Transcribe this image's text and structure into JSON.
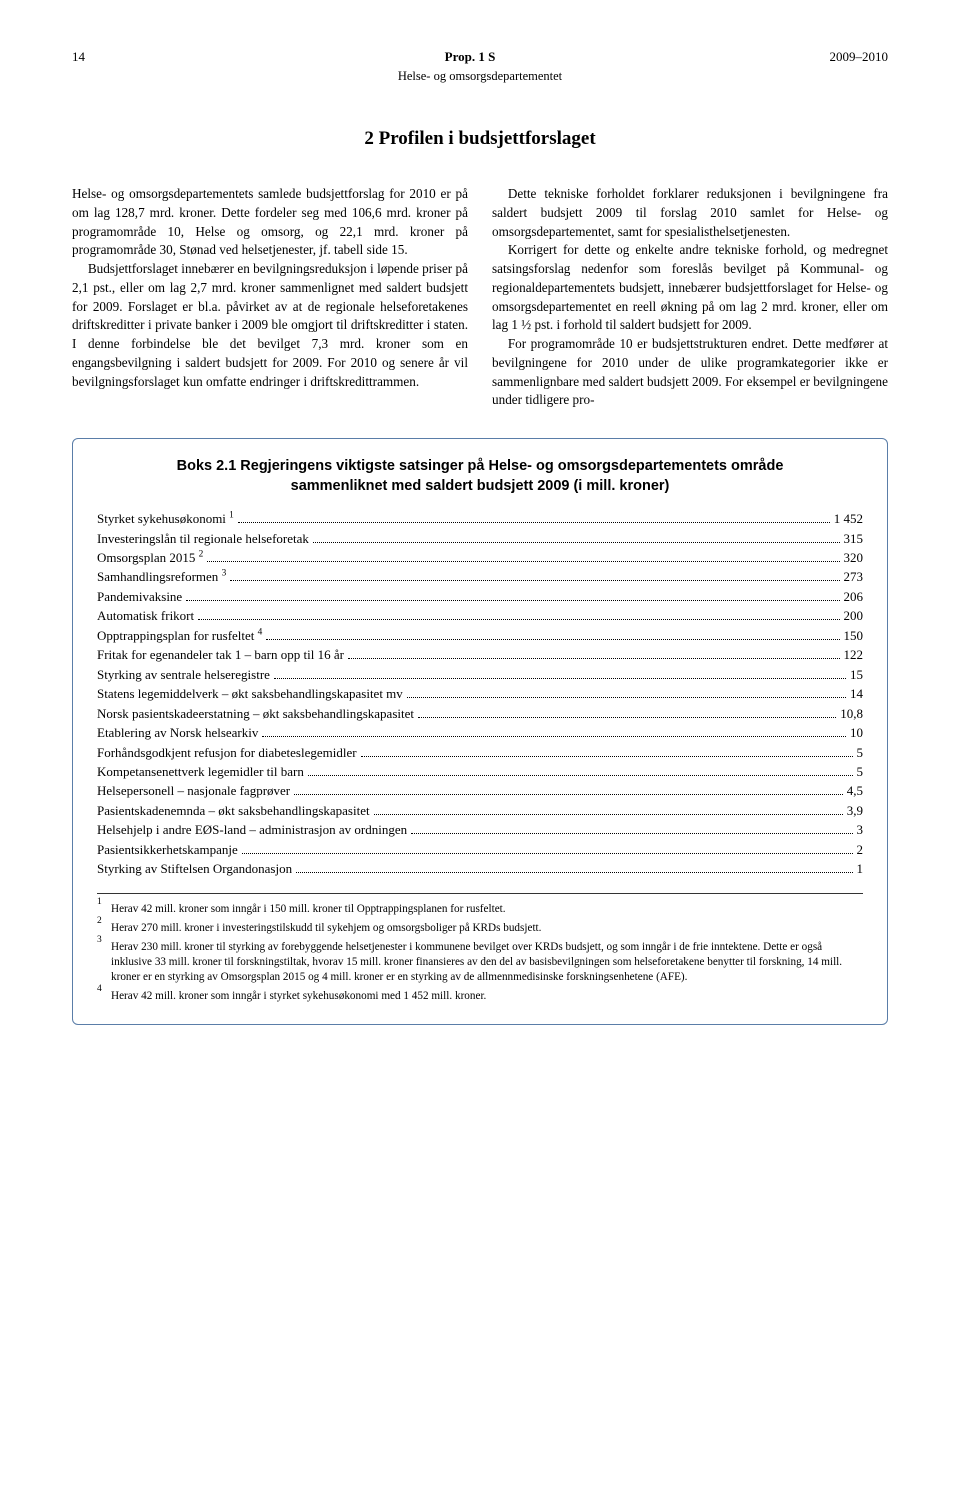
{
  "header": {
    "page": "14",
    "title": "Prop. 1 S",
    "year": "2009–2010",
    "subtitle": "Helse- og omsorgsdepartementet"
  },
  "section_title": "2   Profilen i budsjettforslaget",
  "paragraphs": [
    "Helse- og omsorgsdepartementets samlede budsjettforslag for 2010 er på om lag 128,7 mrd. kroner. Dette fordeler seg med 106,6 mrd. kroner på programområde 10, Helse og omsorg, og 22,1 mrd. kroner på programområde 30, Stønad ved helsetjenester, jf. tabell side 15.",
    "Budsjettforslaget innebærer en bevilgningsreduksjon i løpende priser på 2,1 pst., eller om lag 2,7 mrd. kroner sammenlignet med saldert budsjett for 2009. Forslaget er bl.a. påvirket av at de regionale helseforetakenes driftskreditter i private banker i 2009 ble omgjort til driftskreditter i staten. I denne forbindelse ble det bevilget 7,3 mrd. kroner som en engangsbevilgning i saldert budsjett for 2009. For 2010 og senere år vil bevilgningsforslaget kun omfatte endringer i driftskredittrammen.",
    "Dette tekniske forholdet forklarer reduksjonen i bevilgningene fra saldert budsjett 2009 til forslag 2010 samlet for Helse- og omsorgsdepartementet, samt for spesialisthelsetjenesten.",
    "Korrigert for dette og enkelte andre tekniske forhold, og medregnet satsingsforslag nedenfor som foreslås bevilget på Kommunal- og regionaldepartementets budsjett, innebærer budsjettforslaget for Helse- og omsorgsdepartementet en reell økning på om lag 2 mrd. kroner, eller om lag 1 ½ pst. i forhold til saldert budsjett for 2009.",
    "For programområde 10 er budsjettstrukturen endret. Dette medfører at bevilgningene for 2010 under de ulike programkategorier ikke er sammenlignbare med saldert budsjett 2009. For eksempel er bevilgningene under tidligere pro-"
  ],
  "box": {
    "title_line1": "Boks 2.1 Regjeringens viktigste satsinger på Helse- og omsorgsdepartementets område",
    "title_line2": "sammenliknet med saldert budsjett 2009 (i mill. kroner)",
    "rows": [
      {
        "label": "Styrket sykehusøkonomi ",
        "sup": "1",
        "value": "1 452"
      },
      {
        "label": "Investeringslån til regionale helseforetak",
        "sup": "",
        "value": "315"
      },
      {
        "label": "Omsorgsplan 2015 ",
        "sup": "2",
        "value": "320"
      },
      {
        "label": "Samhandlingsreformen ",
        "sup": "3",
        "value": "273"
      },
      {
        "label": "Pandemivaksine",
        "sup": "",
        "value": "206"
      },
      {
        "label": "Automatisk frikort",
        "sup": "",
        "value": "200"
      },
      {
        "label": "Opptrappingsplan for rusfeltet ",
        "sup": "4",
        "value": "150"
      },
      {
        "label": "Fritak for egenandeler tak 1 – barn opp til 16 år ",
        "sup": "",
        "value": " 122"
      },
      {
        "label": "Styrking av sentrale helseregistre ",
        "sup": "",
        "value": "15"
      },
      {
        "label": "Statens legemiddelverk – økt saksbehandlingskapasitet mv ",
        "sup": "",
        "value": " 14"
      },
      {
        "label": "Norsk pasientskadeerstatning – økt saksbehandlingskapasitet",
        "sup": "",
        "value": "10,8"
      },
      {
        "label": "Etablering av Norsk helsearkiv",
        "sup": "",
        "value": "10"
      },
      {
        "label": "Forhåndsgodkjent refusjon for diabeteslegemidler",
        "sup": "",
        "value": "5"
      },
      {
        "label": "Kompetansenettverk legemidler til barn",
        "sup": "",
        "value": "5"
      },
      {
        "label": "Helsepersonell – nasjonale fagprøver",
        "sup": "",
        "value": "4,5"
      },
      {
        "label": "Pasientskadenemnda – økt saksbehandlingskapasitet",
        "sup": "",
        "value": " 3,9"
      },
      {
        "label": "Helsehjelp i andre EØS-land – administrasjon av ordningen",
        "sup": "",
        "value": "3"
      },
      {
        "label": "Pasientsikkerhetskampanje",
        "sup": "",
        "value": "2"
      },
      {
        "label": "Styrking av Stiftelsen Organdonasjon",
        "sup": "",
        "value": "1"
      }
    ],
    "footnotes": [
      {
        "n": "1",
        "text": "Herav 42 mill. kroner som inngår i 150 mill. kroner til Opptrappingsplanen for rusfeltet."
      },
      {
        "n": "2",
        "text": "Herav 270 mill. kroner i investeringstilskudd til sykehjem og omsorgsboliger på KRDs budsjett."
      },
      {
        "n": "3",
        "text": "Herav 230 mill. kroner til styrking av forebyggende helsetjenester i kommunene bevilget over KRDs budsjett, og som inngår i de frie inntektene. Dette er også inklusive 33 mill. kroner til forskningstiltak, hvorav 15 mill. kroner finansieres av den del av basisbevilgningen som helseforetakene benytter til forskning, 14 mill. kroner er en styrking av Omsorgsplan 2015 og 4 mill. kroner er en styrking av de allmennmedisinske forskningsenhetene (AFE)."
      },
      {
        "n": "4",
        "text": "Herav 42 mill. kroner som inngår i styrket sykehusøkonomi med 1 452 mill. kroner."
      }
    ]
  }
}
